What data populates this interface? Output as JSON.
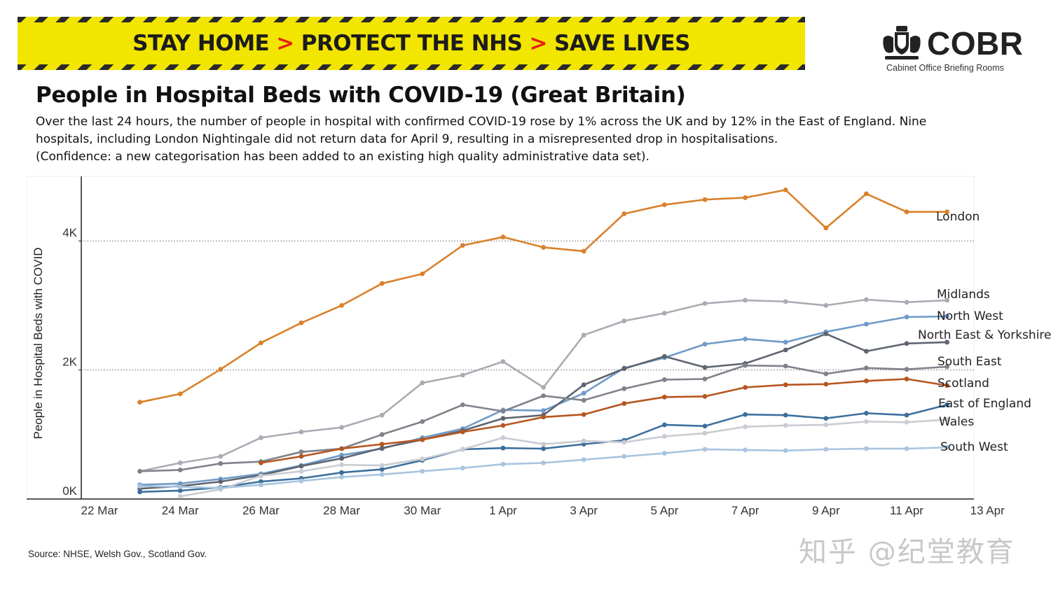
{
  "banner": {
    "part1": "STAY HOME",
    "part2": "PROTECT THE NHS",
    "part3": "SAVE LIVES",
    "separator": ">"
  },
  "logo": {
    "name": "COBR",
    "subtitle": "Cabinet Office Briefing Rooms",
    "icon": "royal-crest-icon"
  },
  "heading": {
    "title": "People in Hospital Beds with COVID-19 (Great Britain)",
    "line1": "Over the last 24 hours, the number of people in hospital with confirmed COVID-19 rose by 1% across the UK and by 12% in the East of England. Nine",
    "line2": "hospitals, including London Nightingale did not return data for April 9, resulting in a misrepresented drop in hospitalisations.",
    "line3": "(Confidence: a new categorisation has been added to an existing high quality administrative data set)."
  },
  "source": "Source: NHSE, Welsh Gov., Scotland Gov.",
  "watermark": "知乎 @纪堂教育",
  "chart_data": {
    "type": "line",
    "title": "People in Hospital Beds with COVID-19 (Great Britain)",
    "ylabel": "People in Hospital Beds with COVID",
    "xlabel": "",
    "ylim": [
      0,
      5000
    ],
    "grid": "horizontal dotted at 2K and 4K",
    "x_domain": [
      22,
      45
    ],
    "x_ticks": [
      {
        "day": 22,
        "label": "22 Mar"
      },
      {
        "day": 24,
        "label": "24 Mar"
      },
      {
        "day": 26,
        "label": "26 Mar"
      },
      {
        "day": 28,
        "label": "28 Mar"
      },
      {
        "day": 30,
        "label": "30 Mar"
      },
      {
        "day": 32,
        "label": "1 Apr"
      },
      {
        "day": 34,
        "label": "3 Apr"
      },
      {
        "day": 36,
        "label": "5 Apr"
      },
      {
        "day": 38,
        "label": "7 Apr"
      },
      {
        "day": 40,
        "label": "9 Apr"
      },
      {
        "day": 42,
        "label": "11 Apr"
      },
      {
        "day": 44,
        "label": "13 Apr"
      }
    ],
    "y_ticks": [
      {
        "value": 0,
        "label": "0K"
      },
      {
        "value": 2000,
        "label": "2K"
      },
      {
        "value": 4000,
        "label": "4K"
      }
    ],
    "series": [
      {
        "name": "London",
        "color": "#d9812b",
        "start": 23,
        "values": [
          1500,
          1630,
          2010,
          2420,
          2730,
          3000,
          3340,
          3490,
          3930,
          4060,
          3900,
          3840,
          4420,
          4560,
          4640,
          4670,
          4790,
          4200,
          4730,
          4450,
          4450
        ]
      },
      {
        "name": "Midlands",
        "color": "#a9acb3",
        "start": 23,
        "values": [
          430,
          560,
          660,
          950,
          1040,
          1110,
          1300,
          1800,
          1920,
          2130,
          1730,
          2540,
          2760,
          2880,
          3030,
          3080,
          3060,
          3000,
          3090,
          3050,
          3080
        ]
      },
      {
        "name": "North West",
        "color": "#6f9bc8",
        "start": 23,
        "values": [
          220,
          240,
          310,
          390,
          520,
          680,
          780,
          950,
          1090,
          1380,
          1370,
          1640,
          2030,
          2190,
          2400,
          2480,
          2430,
          2590,
          2710,
          2820,
          2830
        ]
      },
      {
        "name": "North East & Yorkshire",
        "color": "#5e6470",
        "start": 23,
        "values": [
          160,
          200,
          270,
          370,
          510,
          630,
          790,
          920,
          1060,
          1250,
          1300,
          1770,
          2020,
          2210,
          2040,
          2100,
          2310,
          2560,
          2290,
          2410,
          2430
        ]
      },
      {
        "name": "South East",
        "color": "#7f828a",
        "start": 23,
        "values": [
          430,
          450,
          550,
          580,
          730,
          780,
          1000,
          1200,
          1460,
          1360,
          1600,
          1530,
          1710,
          1850,
          1860,
          2070,
          2060,
          1940,
          2030,
          2010,
          2050
        ]
      },
      {
        "name": "Scotland",
        "color": "#b6561f",
        "start": 26,
        "values": [
          560,
          660,
          780,
          850,
          920,
          1040,
          1140,
          1270,
          1310,
          1480,
          1580,
          1590,
          1730,
          1770,
          1780,
          1830,
          1860,
          1760
        ]
      },
      {
        "name": "East of England",
        "color": "#3d6f9e",
        "start": 23,
        "values": [
          110,
          130,
          180,
          270,
          320,
          410,
          460,
          600,
          770,
          790,
          780,
          850,
          910,
          1150,
          1130,
          1310,
          1300,
          1250,
          1330,
          1300,
          1460
        ]
      },
      {
        "name": "Wales",
        "color": "#c9ccd2",
        "start": 24,
        "values": [
          40,
          150,
          360,
          430,
          530,
          520,
          620,
          770,
          950,
          850,
          900,
          880,
          970,
          1020,
          1120,
          1140,
          1150,
          1200,
          1190,
          1230
        ]
      },
      {
        "name": "South West",
        "color": "#a8c4e0",
        "start": 23,
        "values": [
          200,
          190,
          170,
          220,
          280,
          340,
          380,
          430,
          480,
          540,
          560,
          610,
          660,
          710,
          770,
          760,
          750,
          770,
          780,
          780,
          800
        ]
      }
    ]
  }
}
